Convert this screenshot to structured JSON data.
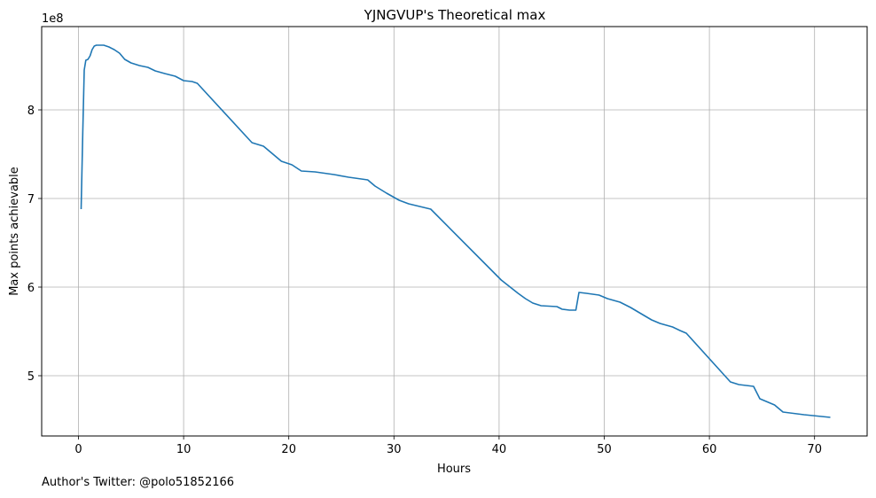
{
  "footnote": "Author's Twitter: @polo51852166",
  "chart_data": {
    "type": "line",
    "title": "YJNGVUP's Theoretical max",
    "xlabel": "Hours",
    "ylabel": "Max points achievable",
    "y_offset_label": "1e8",
    "xlim": [
      -3.5,
      75
    ],
    "ylim": [
      4.32,
      8.94
    ],
    "x_ticks": [
      0,
      10,
      20,
      30,
      40,
      50,
      60,
      70
    ],
    "x_tick_labels": [
      "0",
      "10",
      "20",
      "30",
      "40",
      "50",
      "60",
      "70"
    ],
    "y_ticks": [
      5,
      6,
      7,
      8
    ],
    "y_tick_labels": [
      "5",
      "6",
      "7",
      "8"
    ],
    "grid": true,
    "legend": "none",
    "colors": {
      "line": "#1f77b4",
      "grid": "#b0b0b0"
    },
    "series": [
      {
        "x": [
          0.25,
          0.4,
          0.55,
          0.7,
          0.9,
          1.1,
          1.3,
          1.5,
          1.7,
          2.0,
          2.4,
          2.9,
          3.4,
          3.9,
          4.4,
          5.0,
          5.8,
          6.6,
          7.3,
          8.2,
          9.2,
          10.0,
          10.8,
          11.3,
          16.5,
          17.6,
          19.3,
          20.3,
          21.2,
          22.5,
          24.3,
          25.7,
          27.5,
          28.2,
          29.3,
          30.5,
          31.4,
          33.5,
          40.2,
          41.8,
          42.5,
          43.2,
          44.0,
          45.5,
          46.0,
          46.7,
          47.3,
          47.6,
          48.3,
          49.5,
          50.3,
          51.5,
          52.5,
          53.5,
          54.5,
          55.3,
          56.5,
          57.2,
          57.8,
          62.0,
          62.8,
          64.2,
          64.8,
          66.2,
          67.0,
          69.0,
          71.5
        ],
        "y": [
          6.88,
          7.72,
          8.45,
          8.56,
          8.57,
          8.61,
          8.68,
          8.72,
          8.73,
          8.73,
          8.73,
          8.71,
          8.68,
          8.64,
          8.57,
          8.53,
          8.5,
          8.48,
          8.44,
          8.41,
          8.38,
          8.33,
          8.32,
          8.3,
          7.63,
          7.59,
          7.42,
          7.38,
          7.31,
          7.3,
          7.27,
          7.24,
          7.21,
          7.14,
          7.06,
          6.98,
          6.94,
          6.88,
          6.08,
          5.93,
          5.87,
          5.82,
          5.79,
          5.78,
          5.75,
          5.74,
          5.74,
          5.94,
          5.93,
          5.91,
          5.87,
          5.83,
          5.77,
          5.7,
          5.63,
          5.59,
          5.55,
          5.51,
          5.48,
          4.93,
          4.9,
          4.88,
          4.74,
          4.67,
          4.59,
          4.56,
          4.53
        ]
      }
    ]
  }
}
